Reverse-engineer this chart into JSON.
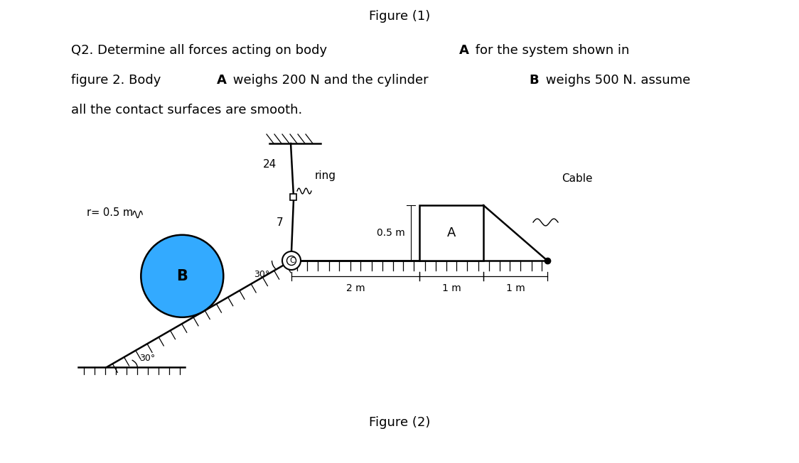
{
  "title": "Figure (1)",
  "fig_caption": "Figure (2)",
  "bg_color": "#ffffff",
  "cylinder_color": "#33aaff",
  "label_r": "r= 0.5 m",
  "label_A": "A",
  "label_B": "B",
  "label_C": "C",
  "label_24": "24",
  "label_7": "7",
  "label_ring": "ring",
  "label_cable": "Cable",
  "label_05m": "0.5 m",
  "label_2m": "2 m",
  "label_1m_1": "1 m",
  "label_1m_2": "1 m",
  "label_30_top": "30°",
  "label_30_bot": "30°"
}
